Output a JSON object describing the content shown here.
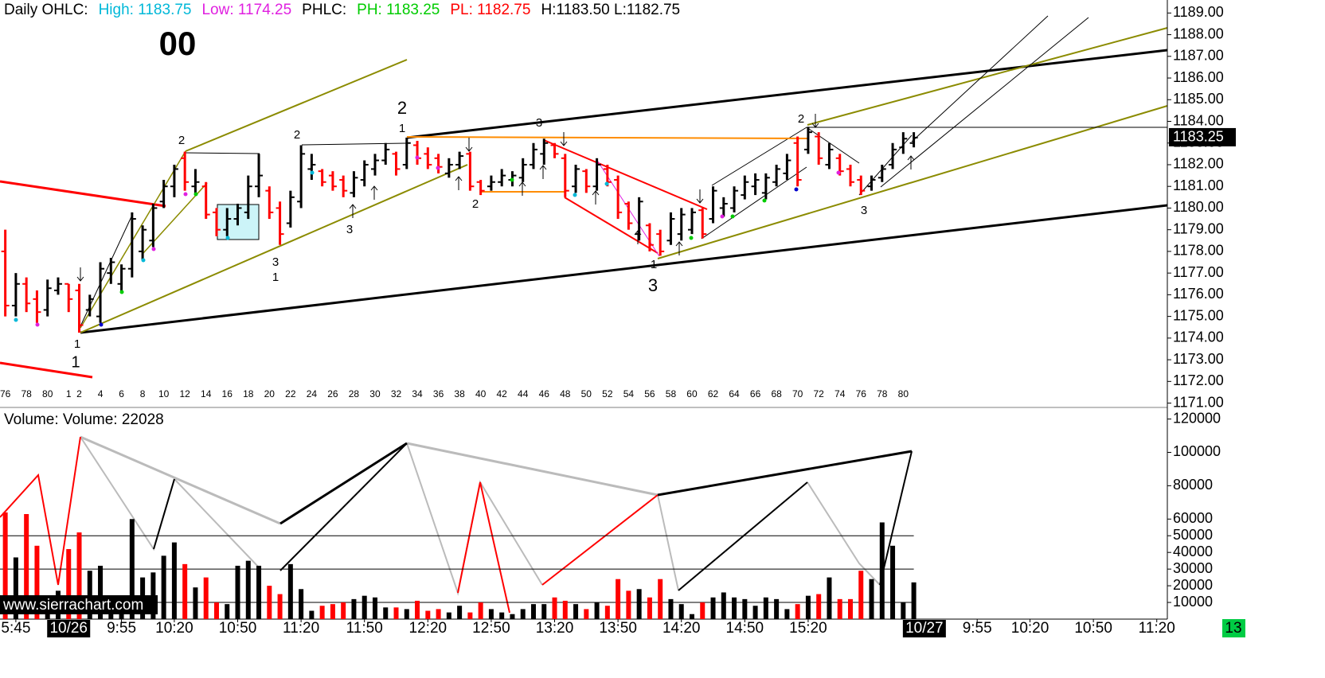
{
  "chart_data": [
    {
      "type": "ohlc",
      "title_items": [
        {
          "text": "Daily OHLC:",
          "color": "#000000"
        },
        {
          "text": "High: 1183.75",
          "color": "#00b8d8"
        },
        {
          "text": "Low: 1174.25",
          "color": "#e020e0"
        },
        {
          "text": "PHLC:",
          "color": "#000000"
        },
        {
          "text": "PH: 1183.25",
          "color": "#00cc00"
        },
        {
          "text": "PL: 1182.75",
          "color": "#ff0000"
        },
        {
          "text": "H:1183.50 L:1182.75",
          "color": "#000000"
        }
      ],
      "big_label": "00",
      "categories": [
        76,
        null,
        78,
        null,
        80,
        null,
        1,
        2,
        null,
        4,
        null,
        6,
        null,
        8,
        null,
        10,
        null,
        12,
        null,
        14,
        null,
        16,
        null,
        18,
        null,
        20,
        null,
        22,
        null,
        24,
        null,
        26,
        null,
        28,
        null,
        30,
        null,
        32,
        null,
        34,
        null,
        36,
        null,
        38,
        null,
        40,
        null,
        42,
        null,
        44,
        null,
        46,
        null,
        48,
        null,
        50,
        null,
        52,
        null,
        54,
        null,
        56,
        null,
        58,
        null,
        60,
        null,
        62,
        null,
        64,
        null,
        66,
        null,
        68,
        null,
        70,
        null,
        72,
        null,
        74,
        null,
        76,
        null,
        78,
        null,
        80,
        null
      ],
      "open": [
        1178,
        1175.5,
        1176.5,
        1175.8,
        1175.3,
        1176.2,
        1176.5,
        1176.2,
        1175.3,
        1175,
        1177,
        1176.5,
        1177.2,
        1178,
        1178.5,
        1180.3,
        1181,
        1182.3,
        1181,
        1181,
        1179.8,
        1179,
        1179.5,
        1179.8,
        1181,
        1180.8,
        1180,
        1179.3,
        1180.3,
        1181.8,
        1181.7,
        1181.5,
        1181.3,
        1180.7,
        1181.3,
        1181.8,
        1182.2,
        1182.5,
        1182,
        1182.9,
        1182.5,
        1182.3,
        1181.6,
        1182,
        1182.5,
        1181.2,
        1181,
        1181.2,
        1181.3,
        1181.4,
        1182,
        1182.5,
        1182.9,
        1182.3,
        1181,
        1181.7,
        1181,
        1181.8,
        1181.3,
        1180.2,
        1178.8,
        1179.2,
        1178.8,
        1178.5,
        1178.8,
        1179,
        1179.9,
        1179.5,
        1180,
        1180,
        1180.6,
        1181,
        1180.7,
        1181.2,
        1181.6,
        1183,
        1182.7,
        1183.3,
        1182,
        1182.3,
        1181.8,
        1181.3,
        1181,
        1181.4,
        1182,
        1182.8,
        1183
      ],
      "high": [
        1179,
        1177,
        1176.8,
        1176.2,
        1176.7,
        1176.8,
        1176.5,
        1176.5,
        1176,
        1177.5,
        1177.7,
        1177.4,
        1179.8,
        1179.2,
        1180.2,
        1181.3,
        1182,
        1182.6,
        1181.8,
        1181.2,
        1180,
        1180,
        1180.2,
        1181.5,
        1182.5,
        1181,
        1180.3,
        1180.8,
        1182.9,
        1182.5,
        1181.8,
        1181.7,
        1181.5,
        1181.7,
        1182.2,
        1182.5,
        1183,
        1182.6,
        1183.25,
        1183.1,
        1182.8,
        1182.5,
        1182.3,
        1182.6,
        1182.6,
        1181.3,
        1181.5,
        1181.8,
        1181.7,
        1182.3,
        1183,
        1183.2,
        1183,
        1182.5,
        1182,
        1181.8,
        1182.3,
        1182,
        1181.5,
        1180.3,
        1180.5,
        1179.3,
        1179,
        1179.8,
        1180,
        1180,
        1180,
        1181,
        1180.5,
        1181,
        1181.5,
        1181.6,
        1181.6,
        1182,
        1182.5,
        1183.3,
        1183.75,
        1183.5,
        1183,
        1182.5,
        1182,
        1181.5,
        1181.5,
        1182,
        1183,
        1183.5,
        1183.5
      ],
      "low": [
        1175,
        1175,
        1175.2,
        1174.7,
        1175,
        1176,
        1175.2,
        1174.25,
        1175,
        1174.7,
        1176.5,
        1176.1,
        1176.8,
        1177.6,
        1178.2,
        1180,
        1180.5,
        1180.8,
        1180.6,
        1179.5,
        1178.7,
        1178.7,
        1179.2,
        1179.5,
        1180.5,
        1179.5,
        1178.3,
        1179.1,
        1180,
        1181.3,
        1181,
        1180.8,
        1180.5,
        1180.5,
        1181,
        1181.5,
        1182,
        1181.5,
        1181.8,
        1182,
        1181.8,
        1181.6,
        1181.4,
        1181.8,
        1180.8,
        1180.6,
        1180.8,
        1181,
        1181,
        1181.2,
        1181.8,
        1182,
        1182.3,
        1180.5,
        1180.7,
        1180.7,
        1180.8,
        1181,
        1179.5,
        1179,
        1178.5,
        1178,
        1177.8,
        1178.3,
        1178.5,
        1178.8,
        1178.6,
        1179.3,
        1179.6,
        1179.8,
        1180.4,
        1180.6,
        1180.4,
        1181,
        1181.3,
        1181,
        1182.5,
        1182,
        1181.8,
        1181.5,
        1181,
        1180.6,
        1180.8,
        1181.2,
        1181.8,
        1182.5,
        1182.8
      ],
      "close": [
        1175.5,
        1176.5,
        1175.6,
        1175.2,
        1176.3,
        1176.5,
        1175.8,
        1174.6,
        1175.8,
        1177.2,
        1177.5,
        1177.2,
        1179.5,
        1179,
        1180,
        1181,
        1181.8,
        1181.2,
        1181.2,
        1179.7,
        1179,
        1179.5,
        1180,
        1181,
        1181.5,
        1179.8,
        1178.8,
        1180.5,
        1182.5,
        1182,
        1181.2,
        1181,
        1180.8,
        1181.4,
        1182,
        1182.2,
        1182.7,
        1181.8,
        1183,
        1182.3,
        1182,
        1181.9,
        1182,
        1182.4,
        1181,
        1180.8,
        1181.2,
        1181.5,
        1181.5,
        1182,
        1182.7,
        1183,
        1182.5,
        1180.8,
        1181.8,
        1181,
        1182,
        1181.2,
        1179.8,
        1179.3,
        1180.3,
        1178.3,
        1178,
        1179.5,
        1179.7,
        1179.8,
        1178.8,
        1180.8,
        1180.2,
        1180.8,
        1181.2,
        1181.3,
        1181.4,
        1181.8,
        1182.2,
        1181.3,
        1183.5,
        1182.3,
        1182.7,
        1181.7,
        1181.2,
        1180.8,
        1181.3,
        1181.8,
        1182.7,
        1183.2,
        1183.25
      ],
      "up_color": "#000000",
      "down_color": "#ff0000",
      "ylim": [
        1170.8,
        1189.6
      ],
      "yticks": [
        {
          "value": 1171,
          "label": "1171.00"
        },
        {
          "value": 1172,
          "label": "1172.00"
        },
        {
          "value": 1173,
          "label": "1173.00"
        },
        {
          "value": 1174,
          "label": "1174.00"
        },
        {
          "value": 1175,
          "label": "1175.00"
        },
        {
          "value": 1176,
          "label": "1176.00"
        },
        {
          "value": 1177,
          "label": "1177.00"
        },
        {
          "value": 1178,
          "label": "1178.00"
        },
        {
          "value": 1179,
          "label": "1179.00"
        },
        {
          "value": 1180,
          "label": "1180.00"
        },
        {
          "value": 1181,
          "label": "1181.00"
        },
        {
          "value": 1182,
          "label": "1182.00"
        },
        {
          "value": 1183,
          "label": "1183.00"
        },
        {
          "value": 1184,
          "label": "1184.00"
        },
        {
          "value": 1185,
          "label": "1185.00"
        },
        {
          "value": 1186,
          "label": "1186.00"
        },
        {
          "value": 1187,
          "label": "1187.00"
        },
        {
          "value": 1188,
          "label": "1188.00"
        },
        {
          "value": 1189,
          "label": "1189.00"
        }
      ],
      "last": {
        "value": 1183.25,
        "label": "1183.25"
      },
      "annotations": [
        "1",
        "1",
        "2",
        "2",
        "3",
        "1",
        "3",
        "2",
        "1",
        "3",
        "2",
        "1",
        "3",
        "2",
        "3"
      ]
    },
    {
      "type": "bar",
      "title": "Volume:  Volume: 22028",
      "values": [
        64000,
        37000,
        63000,
        44000,
        12000,
        17000,
        42000,
        52000,
        29000,
        32000,
        10000,
        6000,
        60000,
        25000,
        28000,
        38000,
        46000,
        33000,
        19000,
        25000,
        10000,
        9000,
        32000,
        35000,
        32000,
        20000,
        15000,
        33000,
        18000,
        5000,
        8000,
        9000,
        10000,
        12000,
        14000,
        13000,
        7000,
        7000,
        6000,
        11000,
        5000,
        6000,
        4000,
        8000,
        4000,
        10000,
        6000,
        4000,
        3000,
        6000,
        9000,
        9000,
        13000,
        11000,
        9000,
        6000,
        10000,
        8000,
        24000,
        17000,
        18000,
        13000,
        24000,
        12000,
        9000,
        3000,
        10000,
        13000,
        16000,
        13000,
        12000,
        8000,
        13000,
        12000,
        6000,
        9000,
        14000,
        15000,
        25000,
        12000,
        12000,
        29000,
        24000,
        58000,
        44000,
        10000,
        22028
      ],
      "ylim": [
        0,
        126000
      ],
      "yticks": [
        120000,
        100000,
        80000,
        60000,
        50000,
        40000,
        30000,
        20000,
        10000
      ],
      "levels": [
        50000,
        30000,
        10000
      ],
      "watermark": "www.sierrachart.com"
    }
  ],
  "time_axis": {
    "xlim": [
      -0.5,
      110
    ],
    "xticks": [
      {
        "value": 1,
        "label": "5:45"
      },
      {
        "value": 11,
        "label": "9:55"
      },
      {
        "value": 16,
        "label": "10:20"
      },
      {
        "value": 22,
        "label": "10:50"
      },
      {
        "value": 28,
        "label": "11:20"
      },
      {
        "value": 34,
        "label": "11:50"
      },
      {
        "value": 40,
        "label": "12:20"
      },
      {
        "value": 46,
        "label": "12:50"
      },
      {
        "value": 52,
        "label": "13:20"
      },
      {
        "value": 58,
        "label": "13:50"
      },
      {
        "value": 64,
        "label": "14:20"
      },
      {
        "value": 70,
        "label": "14:50"
      },
      {
        "value": 76,
        "label": "15:20"
      },
      {
        "value": 92,
        "label": "9:55"
      },
      {
        "value": 97,
        "label": "10:20"
      },
      {
        "value": 103,
        "label": "10:50"
      },
      {
        "value": 109,
        "label": "11:20"
      }
    ],
    "date_ticks": [
      {
        "value": 6,
        "label": "10/26"
      },
      {
        "value": 87,
        "label": "10/27"
      }
    ],
    "corner_label": "13"
  }
}
